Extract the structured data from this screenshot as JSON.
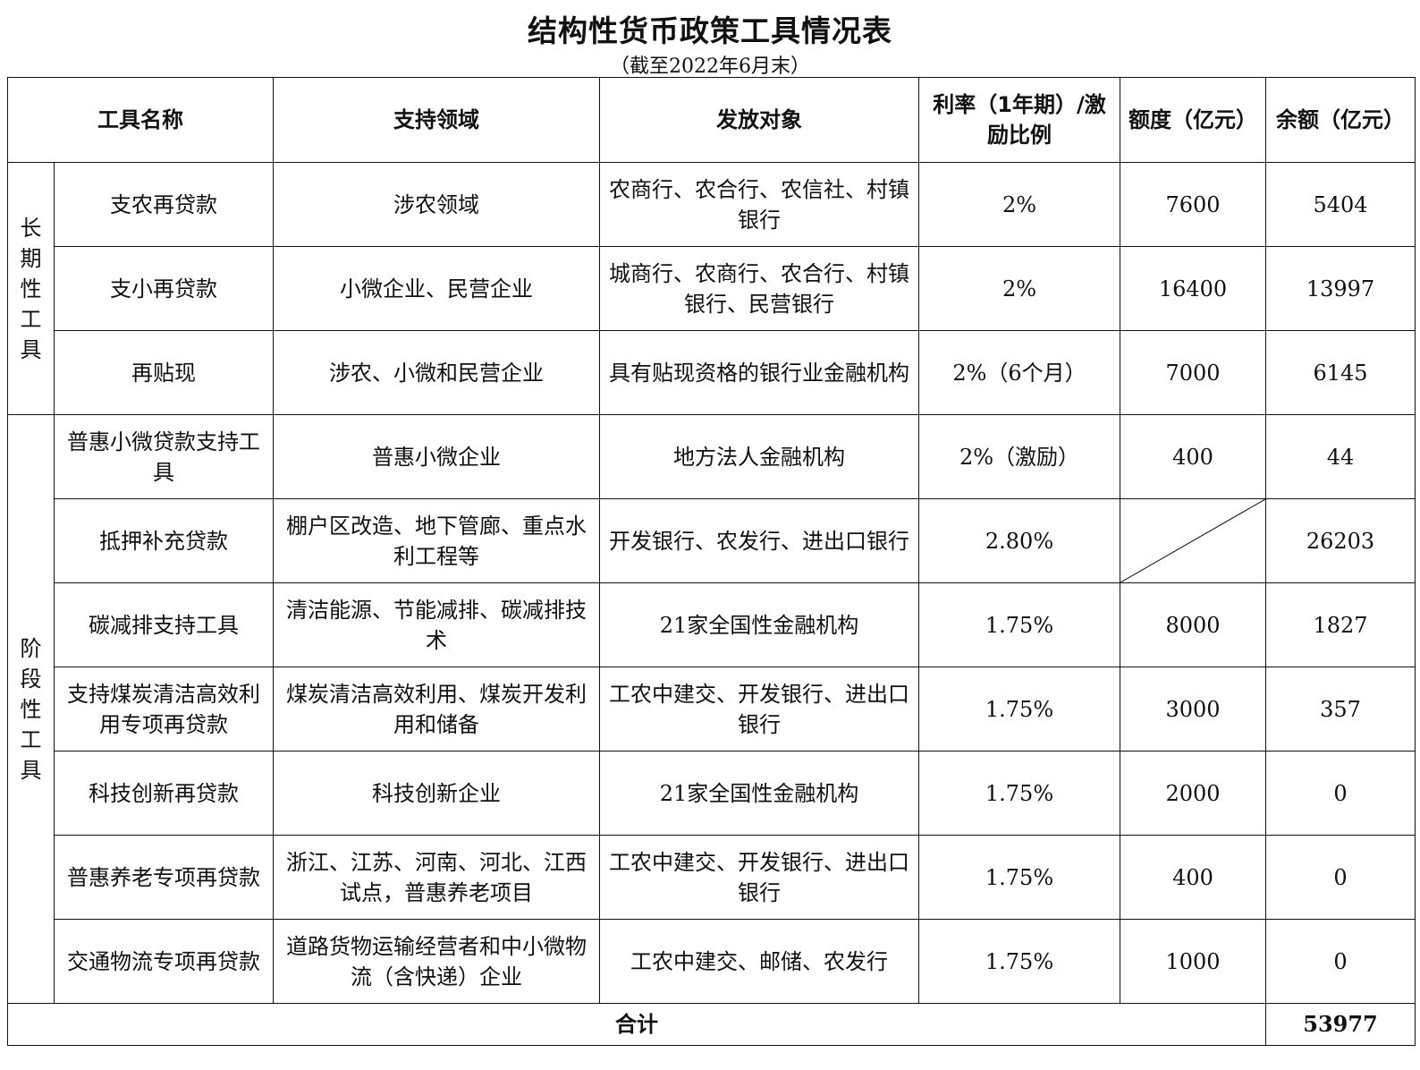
{
  "title": "结构性货币政策工具情况表",
  "subtitle": "（截至2022年6月末）",
  "headers": {
    "name": "工具名称",
    "area": "支持领域",
    "target": "发放对象",
    "rate": "利率（1年期）/激励比例",
    "quota": "额度（亿元）",
    "balance": "余额（亿元）"
  },
  "groups": [
    {
      "label": "长期性工具",
      "span": 3
    },
    {
      "label": "阶段性工具",
      "span": 7
    }
  ],
  "rows": [
    {
      "name": "支农再贷款",
      "area": "涉农领域",
      "target": "农商行、农合行、农信社、村镇银行",
      "rate": "2%",
      "quota": "7600",
      "balance": "5404"
    },
    {
      "name": "支小再贷款",
      "area": "小微企业、民营企业",
      "target": "城商行、农商行、农合行、村镇银行、民营银行",
      "rate": "2%",
      "quota": "16400",
      "balance": "13997"
    },
    {
      "name": "再贴现",
      "area": "涉农、小微和民营企业",
      "target": "具有贴现资格的银行业金融机构",
      "rate": "2%（6个月）",
      "quota": "7000",
      "balance": "6145"
    },
    {
      "name": "普惠小微贷款支持工具",
      "area": "普惠小微企业",
      "target": "地方法人金融机构",
      "rate": "2%（激励）",
      "quota": "400",
      "balance": "44"
    },
    {
      "name": "抵押补充贷款",
      "area": "棚户区改造、地下管廊、重点水利工程等",
      "target": "开发银行、农发行、进出口银行",
      "rate": "2.80%",
      "quota": "",
      "balance": "26203"
    },
    {
      "name": "碳减排支持工具",
      "area": "清洁能源、节能减排、碳减排技术",
      "target": "21家全国性金融机构",
      "rate": "1.75%",
      "quota": "8000",
      "balance": "1827"
    },
    {
      "name": "支持煤炭清洁高效利用专项再贷款",
      "area": "煤炭清洁高效利用、煤炭开发利用和储备",
      "target": "工农中建交、开发银行、进出口银行",
      "rate": "1.75%",
      "quota": "3000",
      "balance": "357"
    },
    {
      "name": "科技创新再贷款",
      "area": "科技创新企业",
      "target": "21家全国性金融机构",
      "rate": "1.75%",
      "quota": "2000",
      "balance": "0"
    },
    {
      "name": "普惠养老专项再贷款",
      "area": "浙江、江苏、河南、河北、江西试点，普惠养老项目",
      "target": "工农中建交、开发银行、进出口银行",
      "rate": "1.75%",
      "quota": "400",
      "balance": "0"
    },
    {
      "name": "交通物流专项再贷款",
      "area": "道路货物运输经营者和中小微物流（含快递）企业",
      "target": "工农中建交、邮储、农发行",
      "rate": "1.75%",
      "quota": "1000",
      "balance": "0"
    }
  ],
  "total": {
    "label": "合计",
    "value": "53977"
  }
}
